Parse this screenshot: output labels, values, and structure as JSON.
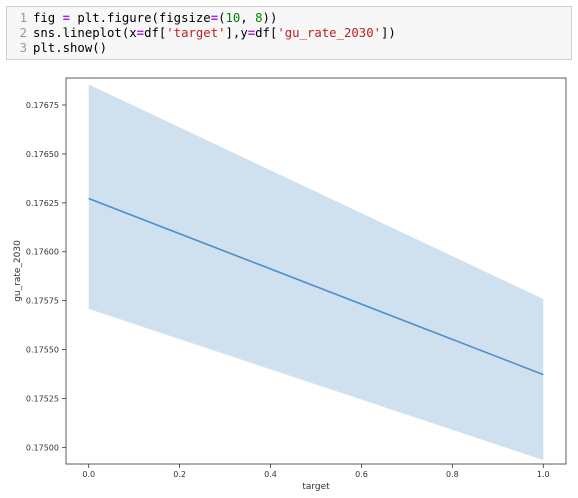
{
  "code_cell": {
    "lines": [
      {
        "number": "1",
        "tokens": [
          {
            "t": "fig ",
            "c": "plain"
          },
          {
            "t": "=",
            "c": "op"
          },
          {
            "t": " plt.figure(figsize",
            "c": "plain"
          },
          {
            "t": "=",
            "c": "op"
          },
          {
            "t": "(",
            "c": "plain"
          },
          {
            "t": "10",
            "c": "num"
          },
          {
            "t": ", ",
            "c": "plain"
          },
          {
            "t": "8",
            "c": "num"
          },
          {
            "t": "))",
            "c": "plain"
          }
        ]
      },
      {
        "number": "2",
        "tokens": [
          {
            "t": "sns.lineplot(x",
            "c": "plain"
          },
          {
            "t": "=",
            "c": "op"
          },
          {
            "t": "df[",
            "c": "plain"
          },
          {
            "t": "'target'",
            "c": "str"
          },
          {
            "t": "],y",
            "c": "plain"
          },
          {
            "t": "=",
            "c": "op"
          },
          {
            "t": "df[",
            "c": "plain"
          },
          {
            "t": "'gu_rate_2030'",
            "c": "str"
          },
          {
            "t": "])",
            "c": "plain"
          }
        ]
      },
      {
        "number": "3",
        "tokens": [
          {
            "t": "plt.show()",
            "c": "plain"
          }
        ]
      }
    ]
  },
  "chart_data": {
    "type": "line",
    "x": [
      0.0,
      1.0
    ],
    "series": [
      {
        "values": [
          0.176272,
          0.175372
        ],
        "ci_lower": [
          0.175708,
          0.174935
        ],
        "ci_upper": [
          0.176855,
          0.175758
        ],
        "color": "#4C8FC9",
        "band_color": "#CFE1EF"
      }
    ],
    "xlabel": "target",
    "ylabel": "gu_rate_2030",
    "xlim": [
      -0.05,
      1.05
    ],
    "ylim": [
      0.174915,
      0.176888
    ],
    "xticks": [
      0.0,
      0.2,
      0.4,
      0.6,
      0.8,
      1.0
    ],
    "xtick_labels": [
      "0.0",
      "0.2",
      "0.4",
      "0.6",
      "0.8",
      "1.0"
    ],
    "yticks": [
      0.175,
      0.17525,
      0.1755,
      0.17575,
      0.176,
      0.17625,
      0.1765,
      0.17675
    ],
    "ytick_labels": [
      "0.17500",
      "0.17525",
      "0.17550",
      "0.17575",
      "0.17600",
      "0.17625",
      "0.17650",
      "0.17675"
    ],
    "grid": false
  }
}
